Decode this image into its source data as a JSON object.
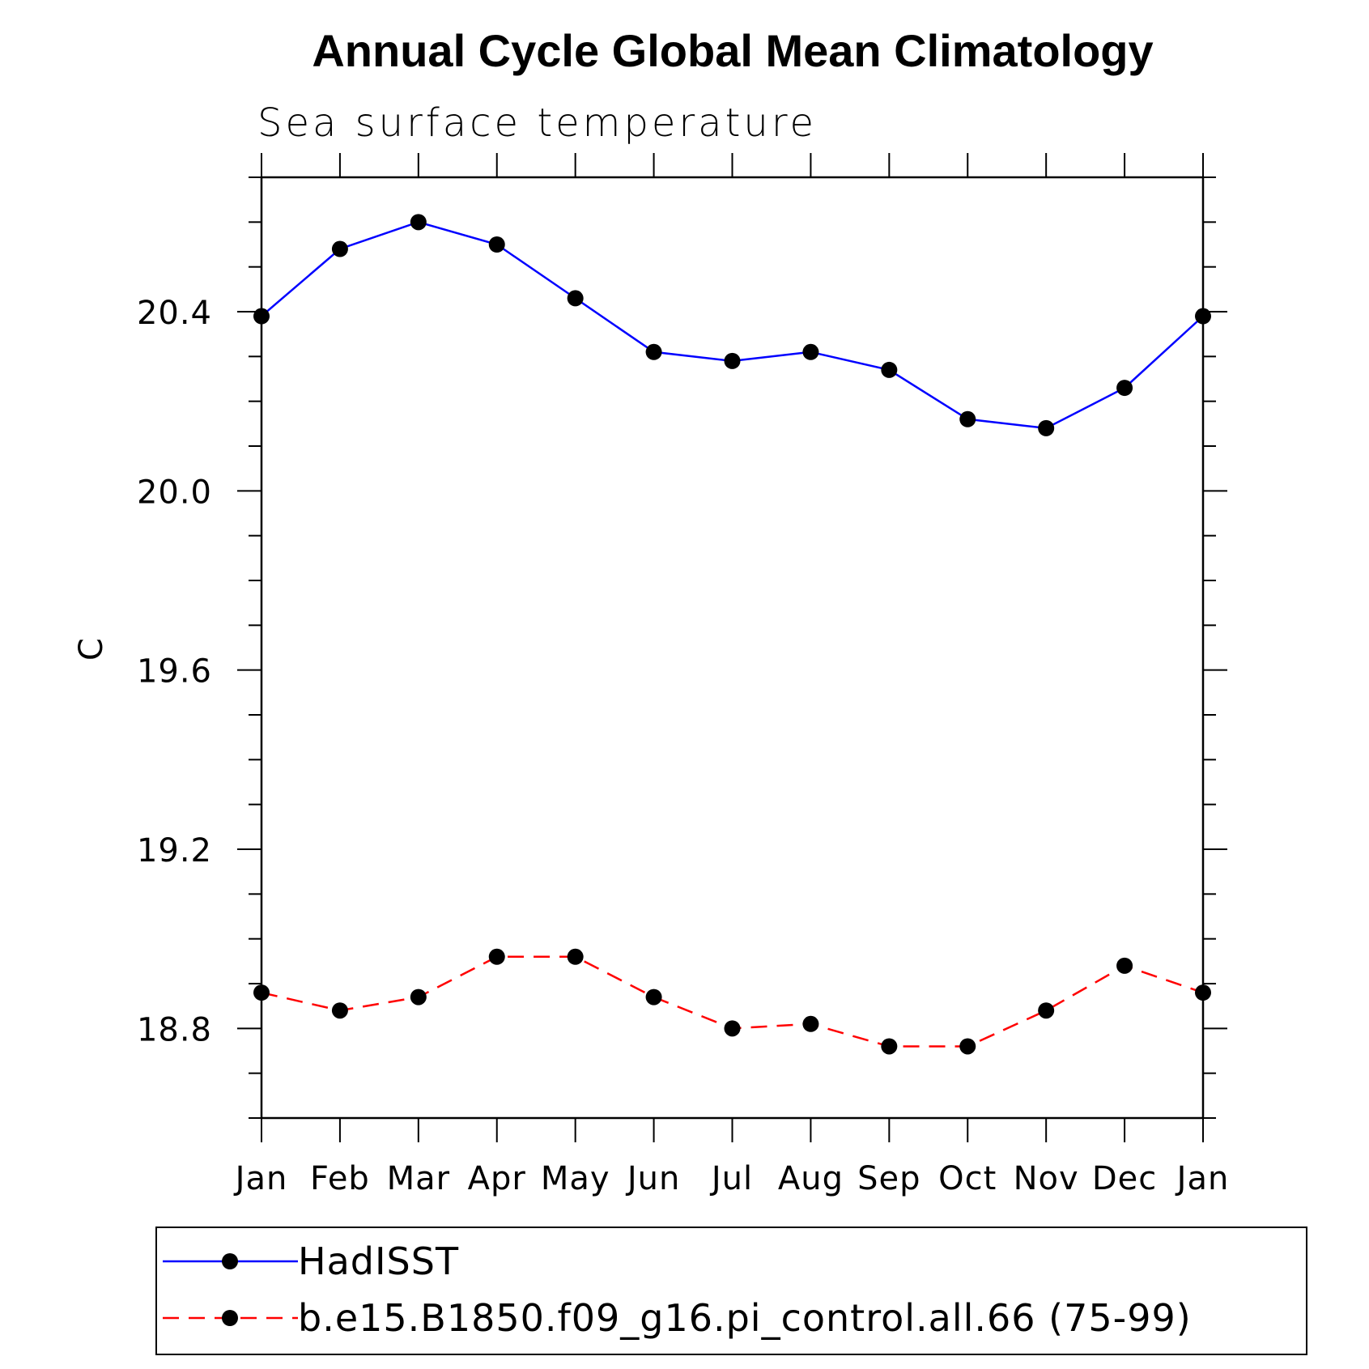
{
  "chart_data": {
    "type": "line",
    "title": "Annual Cycle Global Mean Climatology",
    "subtitle": "Sea surface temperature",
    "xlabel": "",
    "ylabel": "C",
    "categories": [
      "Jan",
      "Feb",
      "Mar",
      "Apr",
      "May",
      "Jun",
      "Jul",
      "Aug",
      "Sep",
      "Oct",
      "Nov",
      "Dec",
      "Jan"
    ],
    "ylim": [
      18.6,
      20.7
    ],
    "y_major_ticks": [
      18.8,
      19.2,
      19.6,
      20.0,
      20.4
    ],
    "y_tick_labels": [
      "18.8",
      "19.2",
      "19.6",
      "20.0",
      "20.4"
    ],
    "y_minor_step": 0.1,
    "grid": false,
    "legend_position": "bottom",
    "series": [
      {
        "name": "HadISST",
        "color": "#0000ff",
        "line_style": "solid",
        "marker": "filled-circle",
        "values": [
          20.39,
          20.54,
          20.6,
          20.55,
          20.43,
          20.31,
          20.29,
          20.31,
          20.27,
          20.16,
          20.14,
          20.23,
          20.39
        ]
      },
      {
        "name": "b.e15.B1850.f09_g16.pi_control.all.66 (75-99)",
        "color": "#ff0000",
        "line_style": "dashed",
        "marker": "filled-circle",
        "values": [
          18.88,
          18.84,
          18.87,
          18.96,
          18.96,
          18.87,
          18.8,
          18.81,
          18.76,
          18.76,
          18.84,
          18.94,
          18.88
        ]
      }
    ]
  }
}
